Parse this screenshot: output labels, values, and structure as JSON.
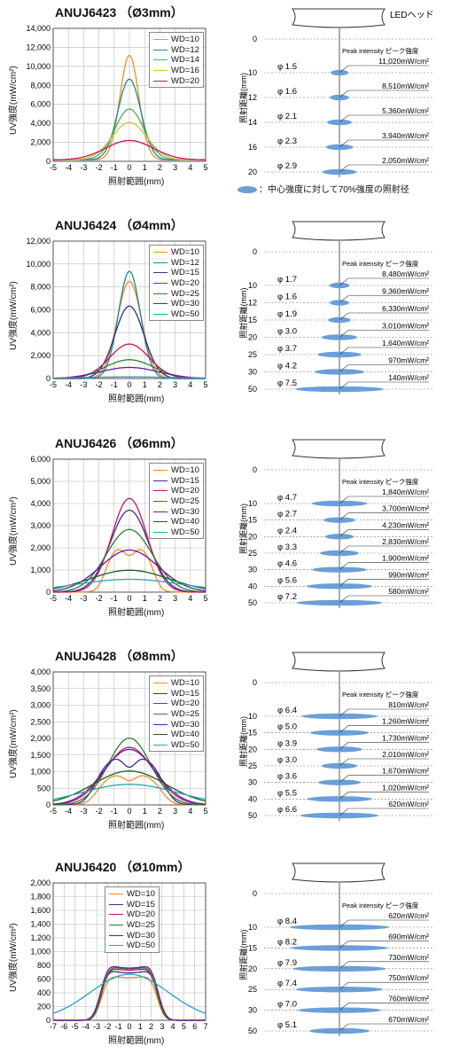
{
  "chart_data": [
    {
      "type": "line",
      "title": "ANUJ6423 （Ø3mm）",
      "xlabel": "照射範囲(mm)",
      "ylabel": "UV強度(mW/cm²)",
      "xlim": [
        -5,
        5
      ],
      "ylim": [
        0,
        14000
      ],
      "x_ticks": [
        -5,
        -4,
        -3,
        -2,
        -1,
        0,
        1,
        2,
        3,
        4,
        5
      ],
      "y_ticks": [
        0,
        2000,
        4000,
        6000,
        8000,
        10000,
        12000,
        14000
      ],
      "y_tick_labels": [
        "0",
        "2,000",
        "4,000",
        "6,000",
        "8,000",
        "10,000",
        "12,000",
        "14,000"
      ],
      "grid": true,
      "legend_position": "top-right",
      "series": [
        {
          "name": "WD=10",
          "color": "#f28c28",
          "peak": 11020,
          "sigma": 0.62,
          "base": 150
        },
        {
          "name": "WD=12",
          "color": "#1a8a8a",
          "peak": 8510,
          "sigma": 0.75,
          "base": 150
        },
        {
          "name": "WD=14",
          "color": "#4caf50",
          "peak": 5360,
          "sigma": 0.95,
          "base": 150
        },
        {
          "name": "WD=16",
          "color": "#d4c04a",
          "peak": 3940,
          "sigma": 1.15,
          "base": 150
        },
        {
          "name": "WD=20",
          "color": "#c2185b",
          "peak": 2050,
          "sigma": 1.55,
          "base": 150
        }
      ],
      "diagram": {
        "header_label": "LEDヘッド",
        "peak_label": "Peak intensity ピーク強度",
        "axis_label": "照射距離(mm)",
        "zero_label": "0",
        "rows": [
          {
            "wd": "10",
            "spot": "φ 1.5",
            "intensity": "11,020mW/cm²",
            "width": 0.25
          },
          {
            "wd": "12",
            "spot": "φ 1.6",
            "intensity": "8,510mW/cm²",
            "width": 0.27
          },
          {
            "wd": "14",
            "spot": "φ 2.1",
            "intensity": "5,360mW/cm²",
            "width": 0.35
          },
          {
            "wd": "16",
            "spot": "φ 2.3",
            "intensity": "3,940mW/cm²",
            "width": 0.38
          },
          {
            "wd": "20",
            "spot": "φ 2.9",
            "intensity": "2,050mW/cm²",
            "width": 0.48
          }
        ]
      }
    },
    {
      "type": "line",
      "title": "ANUJ6424 （Ø4mm）",
      "xlabel": "照射範囲(mm)",
      "ylabel": "UV強度(mW/cm²)",
      "xlim": [
        -5,
        5
      ],
      "ylim": [
        0,
        12000
      ],
      "x_ticks": [
        -5,
        -4,
        -3,
        -2,
        -1,
        0,
        1,
        2,
        3,
        4,
        5
      ],
      "y_ticks": [
        0,
        2000,
        4000,
        6000,
        8000,
        10000,
        12000
      ],
      "y_tick_labels": [
        "0",
        "2,000",
        "4,000",
        "6,000",
        "8,000",
        "10,000",
        "12,000"
      ],
      "grid": true,
      "legend_position": "top-right",
      "series": [
        {
          "name": "WD=10",
          "color": "#f28c28",
          "peak": 8480,
          "sigma": 0.8,
          "base": 0
        },
        {
          "name": "WD=12",
          "color": "#1a8a8a",
          "peak": 9360,
          "sigma": 0.72,
          "base": 0
        },
        {
          "name": "WD=15",
          "color": "#3a2e8c",
          "peak": 6330,
          "sigma": 0.95,
          "base": 0
        },
        {
          "name": "WD=20",
          "color": "#c2185b",
          "peak": 3010,
          "sigma": 1.3,
          "base": 0
        },
        {
          "name": "WD=25",
          "color": "#2e7d32",
          "peak": 1640,
          "sigma": 1.6,
          "base": 0
        },
        {
          "name": "WD=30",
          "color": "#6a1b9a",
          "peak": 970,
          "sigma": 1.9,
          "base": 0
        },
        {
          "name": "WD=50",
          "color": "#29a3b8",
          "peak": 140,
          "sigma": 3.0,
          "base": 0
        }
      ],
      "diagram": {
        "header_label": "",
        "peak_label": "Peak intensity ピーク強度",
        "axis_label": "照射距離(mm)",
        "zero_label": "0",
        "rows": [
          {
            "wd": "10",
            "spot": "φ 1.7",
            "intensity": "8,480mW/cm²",
            "width": 0.28
          },
          {
            "wd": "12",
            "spot": "φ 1.6",
            "intensity": "9,360mW/cm²",
            "width": 0.27
          },
          {
            "wd": "15",
            "spot": "φ 1.9",
            "intensity": "6,330mW/cm²",
            "width": 0.32
          },
          {
            "wd": "20",
            "spot": "φ 3.0",
            "intensity": "3,010mW/cm²",
            "width": 0.5
          },
          {
            "wd": "25",
            "spot": "φ 3.7",
            "intensity": "1,640mW/cm²",
            "width": 0.62
          },
          {
            "wd": "30",
            "spot": "φ 4.2",
            "intensity": "970mW/cm²",
            "width": 0.7
          },
          {
            "wd": "50",
            "spot": "φ 7.5",
            "intensity": "140mW/cm²",
            "width": 1.25
          }
        ]
      }
    },
    {
      "type": "line",
      "title": "ANUJ6426 （Ø6mm）",
      "xlabel": "照射範囲(mm)",
      "ylabel": "UV強度(mW/cm²)",
      "xlim": [
        -5,
        5
      ],
      "ylim": [
        0,
        6000
      ],
      "x_ticks": [
        -5,
        -4,
        -3,
        -2,
        -1,
        0,
        1,
        2,
        3,
        4,
        5
      ],
      "y_ticks": [
        0,
        1000,
        2000,
        3000,
        4000,
        5000,
        6000
      ],
      "y_tick_labels": [
        "0",
        "1,000",
        "2,000",
        "3,000",
        "4,000",
        "5,000",
        "6,000"
      ],
      "grid": true,
      "legend_position": "top-right",
      "series": [
        {
          "name": "WD=10",
          "color": "#f28c28",
          "peak": 1840,
          "sigma": 1.2,
          "base": 0,
          "shape": "flat"
        },
        {
          "name": "WD=15",
          "color": "#3a2e8c",
          "peak": 3700,
          "sigma": 1.25,
          "base": 0
        },
        {
          "name": "WD=20",
          "color": "#c2185b",
          "peak": 4230,
          "sigma": 1.15,
          "base": 0
        },
        {
          "name": "WD=25",
          "color": "#2e7d32",
          "peak": 2830,
          "sigma": 1.5,
          "base": 0
        },
        {
          "name": "WD=30",
          "color": "#6a1b9a",
          "peak": 1900,
          "sigma": 1.9,
          "base": 0
        },
        {
          "name": "WD=40",
          "color": "#1b5e20",
          "peak": 990,
          "sigma": 2.6,
          "base": 0
        },
        {
          "name": "WD=50",
          "color": "#29a3b8",
          "peak": 580,
          "sigma": 3.5,
          "base": 0
        }
      ],
      "diagram": {
        "header_label": "",
        "peak_label": "Peak intensity ピーク強度",
        "axis_label": "照射距離(mm)",
        "zero_label": "0",
        "rows": [
          {
            "wd": "10",
            "spot": "φ 4.7",
            "intensity": "1,840mW/cm²",
            "width": 0.78
          },
          {
            "wd": "15",
            "spot": "φ 2.7",
            "intensity": "3,700mW/cm²",
            "width": 0.45
          },
          {
            "wd": "20",
            "spot": "φ 2.4",
            "intensity": "4,230mW/cm²",
            "width": 0.4
          },
          {
            "wd": "25",
            "spot": "φ 3.3",
            "intensity": "2,830mW/cm²",
            "width": 0.55
          },
          {
            "wd": "30",
            "spot": "φ 4.6",
            "intensity": "1,900mW/cm²",
            "width": 0.77
          },
          {
            "wd": "40",
            "spot": "φ 5.6",
            "intensity": "990mW/cm²",
            "width": 0.93
          },
          {
            "wd": "50",
            "spot": "φ 7.2",
            "intensity": "580mW/cm²",
            "width": 1.2
          }
        ]
      }
    },
    {
      "type": "line",
      "title": "ANUJ6428 （Ø8mm）",
      "xlabel": "照射範囲(mm)",
      "ylabel": "UV強度(mW/cm²)",
      "xlim": [
        -5,
        5
      ],
      "ylim": [
        0,
        4000
      ],
      "x_ticks": [
        -5,
        -4,
        -3,
        -2,
        -1,
        0,
        1,
        2,
        3,
        4,
        5
      ],
      "y_ticks": [
        0,
        500,
        1000,
        1500,
        2000,
        2500,
        3000,
        3500,
        4000
      ],
      "y_tick_labels": [
        "0",
        "500",
        "1,000",
        "1,500",
        "2,000",
        "2,500",
        "3,000",
        "3,500",
        "4,000"
      ],
      "grid": true,
      "legend_position": "top-right",
      "series": [
        {
          "name": "WD=10",
          "color": "#f28c28",
          "peak": 810,
          "sigma": 1.6,
          "base": 0,
          "shape": "flat"
        },
        {
          "name": "WD=15",
          "color": "#3a2e8c",
          "peak": 1260,
          "sigma": 1.7,
          "base": 0,
          "shape": "flat"
        },
        {
          "name": "WD=20",
          "color": "#c2185b",
          "peak": 1730,
          "sigma": 1.6,
          "base": 0
        },
        {
          "name": "WD=25",
          "color": "#2e7d32",
          "peak": 2010,
          "sigma": 1.4,
          "base": 0
        },
        {
          "name": "WD=30",
          "color": "#6a1b9a",
          "peak": 1670,
          "sigma": 1.7,
          "base": 0
        },
        {
          "name": "WD=40",
          "color": "#1b5e20",
          "peak": 1020,
          "sigma": 2.4,
          "base": 0
        },
        {
          "name": "WD=50",
          "color": "#29a3b8",
          "peak": 620,
          "sigma": 3.1,
          "base": 0
        }
      ],
      "diagram": {
        "header_label": "",
        "peak_label": "Peak intensity ピーク強度",
        "axis_label": "照射距離(mm)",
        "zero_label": "0",
        "rows": [
          {
            "wd": "10",
            "spot": "φ 6.4",
            "intensity": "810mW/cm²",
            "width": 1.07
          },
          {
            "wd": "15",
            "spot": "φ 5.0",
            "intensity": "1,260mW/cm²",
            "width": 0.83
          },
          {
            "wd": "20",
            "spot": "φ 3.9",
            "intensity": "1,730mW/cm²",
            "width": 0.65
          },
          {
            "wd": "25",
            "spot": "φ 3.0",
            "intensity": "2,010mW/cm²",
            "width": 0.5
          },
          {
            "wd": "30",
            "spot": "φ 3.6",
            "intensity": "1,670mW/cm²",
            "width": 0.6
          },
          {
            "wd": "40",
            "spot": "φ 5.5",
            "intensity": "1,020mW/cm²",
            "width": 0.92
          },
          {
            "wd": "50",
            "spot": "φ 6.6",
            "intensity": "620mW/cm²",
            "width": 1.1
          }
        ]
      }
    },
    {
      "type": "line",
      "title": "ANUJ6420 （Ø10mm）",
      "xlabel": "照射範囲(mm)",
      "ylabel": "UV強度(mW/cm²)",
      "xlim": [
        -7,
        7
      ],
      "ylim": [
        0,
        2000
      ],
      "x_ticks": [
        -7,
        -6,
        -5,
        -4,
        -3,
        -2,
        -1,
        0,
        1,
        2,
        3,
        4,
        5,
        6,
        7
      ],
      "y_ticks": [
        0,
        200,
        400,
        600,
        800,
        1000,
        1200,
        1400,
        1600,
        1800,
        2000
      ],
      "y_tick_labels": [
        "0",
        "200",
        "400",
        "600",
        "800",
        "1,000",
        "1,200",
        "1,400",
        "1,600",
        "1,800",
        "2,000"
      ],
      "grid": true,
      "legend_position": "top-center",
      "series": [
        {
          "name": "WD=10",
          "color": "#f28c28",
          "peak": 620,
          "sigma": 2.6,
          "base": 0,
          "shape": "ring"
        },
        {
          "name": "WD=15",
          "color": "#3a2e8c",
          "peak": 690,
          "sigma": 2.7,
          "base": 0,
          "shape": "ring"
        },
        {
          "name": "WD=20",
          "color": "#c2185b",
          "peak": 730,
          "sigma": 2.6,
          "base": 0,
          "shape": "ring"
        },
        {
          "name": "WD=25",
          "color": "#2e7d32",
          "peak": 750,
          "sigma": 2.6,
          "base": 0,
          "shape": "ring"
        },
        {
          "name": "WD=30",
          "color": "#6a1b9a",
          "peak": 760,
          "sigma": 2.7,
          "base": 0,
          "shape": "ring"
        },
        {
          "name": "WD=50",
          "color": "#29a3b8",
          "peak": 670,
          "sigma": 3.6,
          "base": 0
        }
      ],
      "diagram": {
        "header_label": "",
        "peak_label": "Peak intensity ピーク強度",
        "axis_label": "照射距離(mm)",
        "zero_label": "0",
        "rows": [
          {
            "wd": "10",
            "spot": "φ 8.4",
            "intensity": "620mW/cm²",
            "width": 1.4
          },
          {
            "wd": "15",
            "spot": "φ 8.2",
            "intensity": "690mW/cm²",
            "width": 1.37
          },
          {
            "wd": "20",
            "spot": "φ 7.9",
            "intensity": "730mW/cm²",
            "width": 1.32
          },
          {
            "wd": "25",
            "spot": "φ 7.4",
            "intensity": "750mW/cm²",
            "width": 1.23
          },
          {
            "wd": "30",
            "spot": "φ 7.0",
            "intensity": "760mW/cm²",
            "width": 1.17
          },
          {
            "wd": "50",
            "spot": "φ 5.1",
            "intensity": "670mW/cm²",
            "width": 0.85
          }
        ]
      }
    }
  ],
  "note": "：中心強度に対して70%強度の照射径",
  "note_color": "#6a9fd8"
}
